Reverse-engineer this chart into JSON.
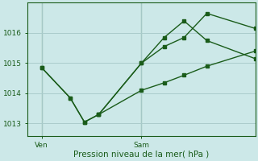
{
  "xlabel": "Pression niveau de la mer( hPa )",
  "background_color": "#cce8e8",
  "plot_bg_color": "#cce8e8",
  "grid_color": "#aacccc",
  "line_color": "#1a5c1a",
  "ylim": [
    1012.6,
    1017.0
  ],
  "xlim": [
    0,
    8
  ],
  "xtick_positions": [
    0.5,
    4.0
  ],
  "xticklabels": [
    "Ven",
    "Sam"
  ],
  "yticks": [
    1013,
    1014,
    1015,
    1016
  ],
  "line1_x": [
    0.5,
    1.5,
    2.0,
    2.5,
    4.0,
    4.8,
    5.5,
    6.3,
    8.0
  ],
  "line1_y": [
    1014.85,
    1013.85,
    1013.05,
    1013.3,
    1015.0,
    1015.55,
    1015.85,
    1016.65,
    1016.15
  ],
  "line2_x": [
    0.5,
    1.5,
    2.0,
    2.5,
    4.0,
    4.8,
    5.5,
    6.3,
    8.0
  ],
  "line2_y": [
    1014.85,
    1013.85,
    1013.05,
    1013.3,
    1014.1,
    1014.35,
    1014.6,
    1014.9,
    1015.4
  ],
  "line3_x": [
    2.5,
    4.0,
    4.8,
    5.5,
    6.3,
    8.0
  ],
  "line3_y": [
    1013.3,
    1015.0,
    1015.85,
    1016.4,
    1015.75,
    1015.15
  ],
  "marker_size": 2.5,
  "line_width": 1.0
}
